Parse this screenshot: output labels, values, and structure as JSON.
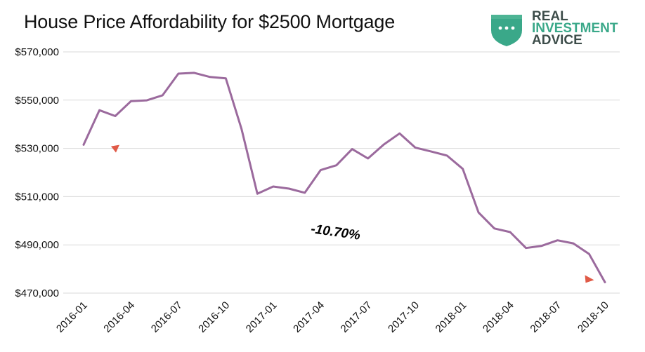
{
  "brand": {
    "line1": "REAL",
    "line2": "INVESTMENT",
    "line3": "ADVICE",
    "shield_color": "#3aa889",
    "text_color": "#3d4d4a"
  },
  "chart_data": {
    "type": "line",
    "title": "House Price Affordability  for $2500 Mortgage",
    "xlabel": "",
    "ylabel": "",
    "ylim": [
      470000,
      570000
    ],
    "yticks": [
      470000,
      490000,
      510000,
      530000,
      550000,
      570000
    ],
    "ytick_labels": [
      "$470,000",
      "$490,000",
      "$510,000",
      "$530,000",
      "$550,000",
      "$570,000"
    ],
    "xtick_labels": [
      "2016-01",
      "2016-04",
      "2016-07",
      "2016-10",
      "2017-01",
      "2017-04",
      "2017-07",
      "2017-10",
      "2018-01",
      "2018-04",
      "2018-07",
      "2018-10"
    ],
    "grid": true,
    "line_color": "#9b6a9d",
    "marker_color": "#e05a47",
    "x": [
      "2016-01",
      "2016-02",
      "2016-03",
      "2016-04",
      "2016-05",
      "2016-06",
      "2016-07",
      "2016-08",
      "2016-09",
      "2016-10",
      "2016-11",
      "2016-12",
      "2017-01",
      "2017-02",
      "2017-03",
      "2017-04",
      "2017-05",
      "2017-06",
      "2017-07",
      "2017-08",
      "2017-09",
      "2017-10",
      "2017-11",
      "2017-12",
      "2018-01",
      "2018-02",
      "2018-03",
      "2018-04",
      "2018-05",
      "2018-06",
      "2018-07",
      "2018-08",
      "2018-09",
      "2018-10"
    ],
    "values": [
      531500,
      545800,
      543400,
      549600,
      549900,
      552000,
      561000,
      561300,
      559600,
      559000,
      538000,
      511200,
      514200,
      513300,
      511600,
      521000,
      523000,
      529700,
      525800,
      531600,
      536200,
      530300,
      528700,
      527000,
      521500,
      503400,
      496800,
      495300,
      488700,
      489600,
      491900,
      490600,
      486200,
      474500
    ],
    "annotations": [
      {
        "text": "-10.70%",
        "x": "2017-03",
        "y": 495000,
        "rotate": 8
      }
    ],
    "markers": [
      {
        "x": "2016-03",
        "y": 529700,
        "direction": "down"
      },
      {
        "x": "2018-09",
        "y": 475700,
        "direction": "right"
      }
    ]
  }
}
